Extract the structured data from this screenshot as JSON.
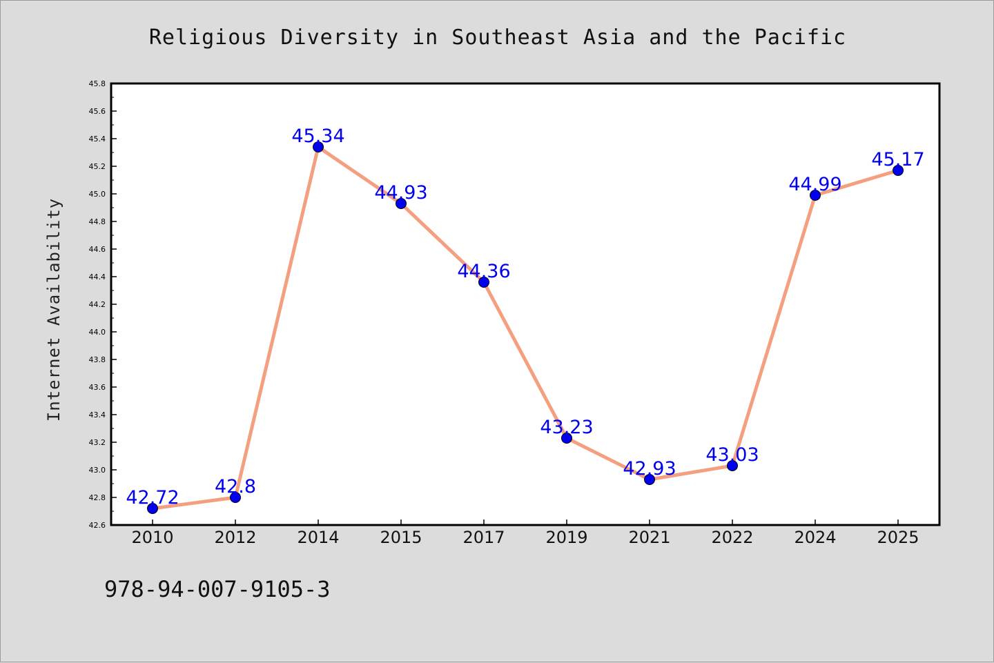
{
  "chart_data": {
    "type": "line",
    "title": "Religious Diversity in Southeast Asia and the Pacific",
    "xlabel": "",
    "ylabel": "Internet Availability",
    "categories": [
      "2010",
      "2012",
      "2014",
      "2015",
      "2017",
      "2019",
      "2021",
      "2022",
      "2024",
      "2025"
    ],
    "series": [
      {
        "values": [
          42.72,
          42.8,
          45.34,
          44.93,
          44.36,
          43.23,
          42.93,
          43.03,
          44.99,
          45.17
        ],
        "labels": [
          "42.72",
          "42.8",
          "45.34",
          "44.93",
          "44.36",
          "43.23",
          "42.93",
          "43.03",
          "44.99",
          "45.17"
        ]
      }
    ],
    "ylim": [
      42.6,
      45.8
    ],
    "yticks": [
      "42.6",
      "42.8",
      "43.0",
      "43.2",
      "43.4",
      "43.6",
      "43.8",
      "44.0",
      "44.2",
      "44.4",
      "44.6",
      "44.8",
      "45.0",
      "45.2",
      "45.4",
      "45.6",
      "45.8"
    ],
    "grid": false,
    "legend": "none",
    "line_color": "#f4a080",
    "marker_color": "#0000ee",
    "label_color": "#0000ee"
  },
  "footnote": "978-94-007-9105-3"
}
